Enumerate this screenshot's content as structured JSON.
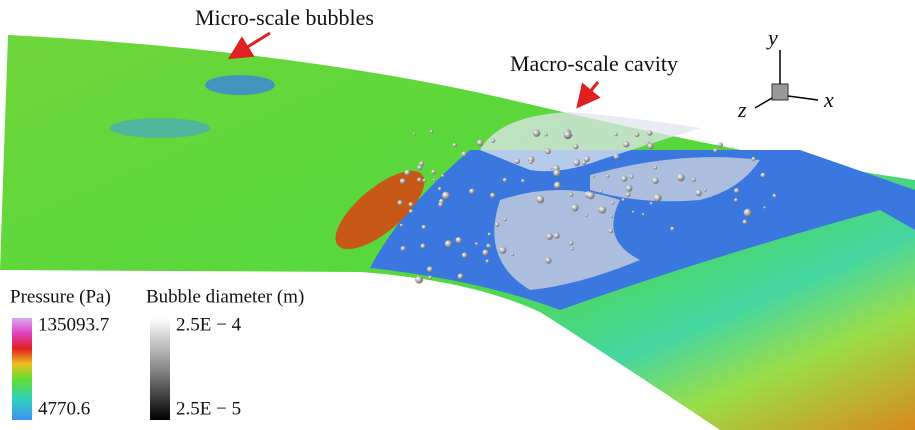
{
  "annotations": {
    "micro": "Micro-scale bubbles",
    "macro": "Macro-scale cavity"
  },
  "axes": {
    "x": "x",
    "y": "y",
    "z": "z"
  },
  "legend": {
    "pressure": {
      "title": "Pressure (Pa)",
      "max": "135093.7",
      "min": "4770.6"
    },
    "bubble": {
      "title": "Bubble diameter (m)",
      "max": "2.5E − 4",
      "min": "2.5E − 5"
    }
  }
}
